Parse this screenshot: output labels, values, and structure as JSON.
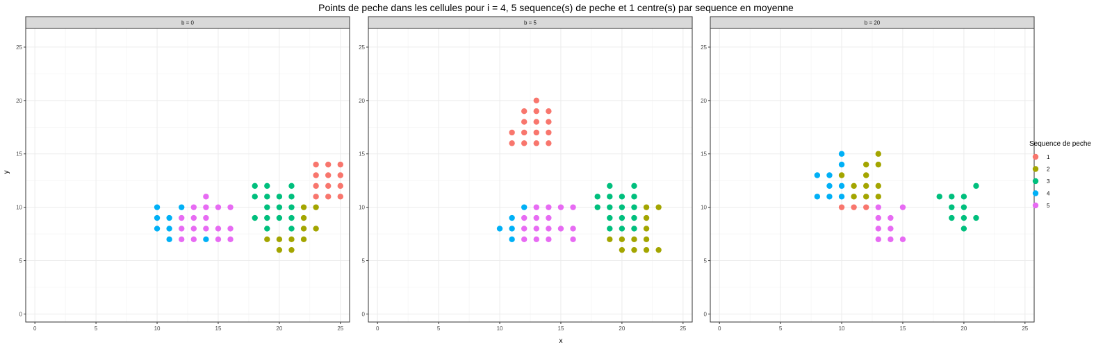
{
  "chart_data": {
    "type": "scatter",
    "title": "Points de peche dans les cellules pour i = 4, 5 sequence(s) de peche et 1 centre(s) par sequence en moyenne",
    "xlabel": "x",
    "ylabel": "y",
    "xlim": [
      -0.75,
      25.75
    ],
    "ylim": [
      -0.75,
      26.75
    ],
    "x_ticks": [
      0,
      5,
      10,
      15,
      20,
      25
    ],
    "y_ticks": [
      0,
      5,
      10,
      15,
      20,
      25
    ],
    "grid": true,
    "legend": {
      "title": "Sequence de peche",
      "position": "right",
      "entries": [
        {
          "label": "1",
          "color": "#F8766D"
        },
        {
          "label": "2",
          "color": "#A3A500"
        },
        {
          "label": "3",
          "color": "#00BF7D"
        },
        {
          "label": "4",
          "color": "#00B0F6"
        },
        {
          "label": "5",
          "color": "#E76BF3"
        }
      ]
    },
    "facets": [
      {
        "label": "b = 0",
        "series": [
          {
            "name": "1",
            "points": [
              [
                23,
                14
              ],
              [
                24,
                14
              ],
              [
                25,
                14
              ],
              [
                23,
                13
              ],
              [
                24,
                13
              ],
              [
                25,
                13
              ],
              [
                23,
                12
              ],
              [
                24,
                12
              ],
              [
                25,
                12
              ],
              [
                23,
                11
              ],
              [
                24,
                11
              ],
              [
                25,
                11
              ]
            ]
          },
          {
            "name": "2",
            "points": [
              [
                22,
                10
              ],
              [
                23,
                10
              ],
              [
                22,
                9
              ],
              [
                22,
                8
              ],
              [
                23,
                8
              ],
              [
                19,
                7
              ],
              [
                20,
                7
              ],
              [
                21,
                7
              ],
              [
                22,
                7
              ],
              [
                20,
                6
              ],
              [
                21,
                6
              ]
            ]
          },
          {
            "name": "3",
            "points": [
              [
                18,
                12
              ],
              [
                19,
                12
              ],
              [
                21,
                12
              ],
              [
                18,
                11
              ],
              [
                19,
                11
              ],
              [
                20,
                11
              ],
              [
                21,
                11
              ],
              [
                19,
                10
              ],
              [
                20,
                10
              ],
              [
                21,
                10
              ],
              [
                18,
                9
              ],
              [
                19,
                9
              ],
              [
                20,
                9
              ],
              [
                21,
                9
              ],
              [
                19,
                8
              ],
              [
                21,
                8
              ]
            ]
          },
          {
            "name": "4",
            "points": [
              [
                10,
                10
              ],
              [
                12,
                10
              ],
              [
                10,
                9
              ],
              [
                11,
                9
              ],
              [
                10,
                8
              ],
              [
                11,
                8
              ],
              [
                11,
                7
              ],
              [
                14,
                7
              ]
            ]
          },
          {
            "name": "5",
            "points": [
              [
                14,
                11
              ],
              [
                13,
                10
              ],
              [
                14,
                10
              ],
              [
                15,
                10
              ],
              [
                16,
                10
              ],
              [
                12,
                9
              ],
              [
                13,
                9
              ],
              [
                14,
                9
              ],
              [
                12,
                8
              ],
              [
                13,
                8
              ],
              [
                14,
                8
              ],
              [
                15,
                8
              ],
              [
                16,
                8
              ],
              [
                12,
                7
              ],
              [
                13,
                7
              ],
              [
                15,
                7
              ],
              [
                16,
                7
              ]
            ]
          }
        ]
      },
      {
        "label": "b = 5",
        "series": [
          {
            "name": "1",
            "points": [
              [
                13,
                20
              ],
              [
                12,
                19
              ],
              [
                13,
                19
              ],
              [
                14,
                19
              ],
              [
                12,
                18
              ],
              [
                13,
                18
              ],
              [
                14,
                18
              ],
              [
                11,
                17
              ],
              [
                12,
                17
              ],
              [
                13,
                17
              ],
              [
                14,
                17
              ],
              [
                11,
                16
              ],
              [
                12,
                16
              ],
              [
                13,
                16
              ],
              [
                14,
                16
              ]
            ]
          },
          {
            "name": "2",
            "points": [
              [
                22,
                10
              ],
              [
                23,
                10
              ],
              [
                22,
                9
              ],
              [
                22,
                8
              ],
              [
                19,
                7
              ],
              [
                20,
                7
              ],
              [
                21,
                7
              ],
              [
                22,
                7
              ],
              [
                20,
                6
              ],
              [
                21,
                6
              ],
              [
                22,
                6
              ],
              [
                23,
                6
              ]
            ]
          },
          {
            "name": "3",
            "points": [
              [
                19,
                12
              ],
              [
                21,
                12
              ],
              [
                18,
                11
              ],
              [
                19,
                11
              ],
              [
                20,
                11
              ],
              [
                21,
                11
              ],
              [
                18,
                10
              ],
              [
                19,
                10
              ],
              [
                20,
                10
              ],
              [
                21,
                10
              ],
              [
                19,
                9
              ],
              [
                20,
                9
              ],
              [
                21,
                9
              ],
              [
                19,
                8
              ],
              [
                20,
                8
              ],
              [
                21,
                8
              ]
            ]
          },
          {
            "name": "4",
            "points": [
              [
                12,
                10
              ],
              [
                11,
                9
              ],
              [
                10,
                8
              ],
              [
                11,
                8
              ],
              [
                11,
                7
              ]
            ]
          },
          {
            "name": "5",
            "points": [
              [
                13,
                10
              ],
              [
                14,
                10
              ],
              [
                15,
                10
              ],
              [
                16,
                10
              ],
              [
                12,
                9
              ],
              [
                13,
                9
              ],
              [
                14,
                9
              ],
              [
                12,
                8
              ],
              [
                13,
                8
              ],
              [
                14,
                8
              ],
              [
                15,
                8
              ],
              [
                16,
                8
              ],
              [
                12,
                7
              ],
              [
                13,
                7
              ],
              [
                14,
                7
              ],
              [
                16,
                7
              ]
            ]
          }
        ]
      },
      {
        "label": "b = 20",
        "series": [
          {
            "name": "1",
            "points": [
              [
                10,
                10
              ],
              [
                11,
                10
              ],
              [
                12,
                10
              ]
            ]
          },
          {
            "name": "2",
            "points": [
              [
                13,
                15
              ],
              [
                12,
                14
              ],
              [
                13,
                14
              ],
              [
                10,
                13
              ],
              [
                12,
                13
              ],
              [
                11,
                12
              ],
              [
                12,
                12
              ],
              [
                13,
                12
              ],
              [
                11,
                11
              ],
              [
                12,
                11
              ],
              [
                13,
                11
              ]
            ]
          },
          {
            "name": "3",
            "points": [
              [
                21,
                12
              ],
              [
                18,
                11
              ],
              [
                19,
                11
              ],
              [
                20,
                11
              ],
              [
                19,
                10
              ],
              [
                20,
                10
              ],
              [
                19,
                9
              ],
              [
                20,
                9
              ],
              [
                21,
                9
              ],
              [
                20,
                8
              ]
            ]
          },
          {
            "name": "4",
            "points": [
              [
                10,
                15
              ],
              [
                10,
                14
              ],
              [
                8,
                13
              ],
              [
                9,
                13
              ],
              [
                9,
                12
              ],
              [
                10,
                12
              ],
              [
                8,
                11
              ],
              [
                9,
                11
              ],
              [
                10,
                11
              ]
            ]
          },
          {
            "name": "5",
            "points": [
              [
                13,
                10
              ],
              [
                15,
                10
              ],
              [
                13,
                9
              ],
              [
                14,
                9
              ],
              [
                13,
                8
              ],
              [
                14,
                8
              ],
              [
                13,
                7
              ],
              [
                14,
                7
              ],
              [
                15,
                7
              ]
            ]
          }
        ]
      }
    ]
  }
}
